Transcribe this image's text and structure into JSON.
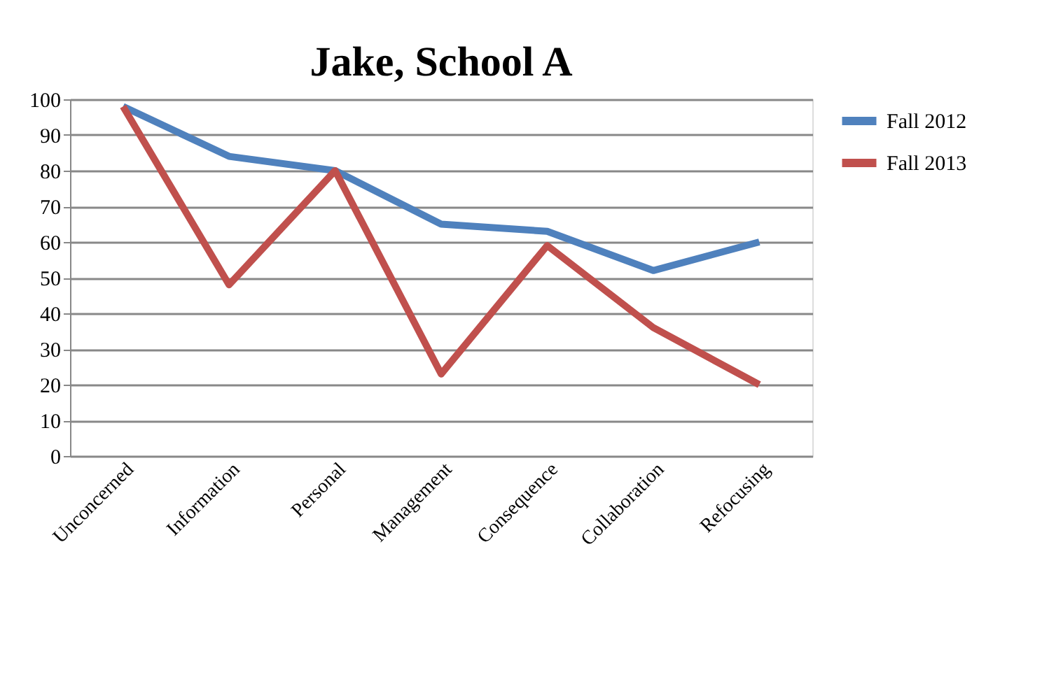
{
  "chart_data": {
    "type": "line",
    "title": "Jake, School A",
    "categories": [
      "Unconcerned",
      "Information",
      "Personal",
      "Management",
      "Consequence",
      "Collaboration",
      "Refocusing"
    ],
    "series": [
      {
        "name": "Fall 2012",
        "color": "#4f81bd",
        "values": [
          98,
          84,
          80,
          65,
          63,
          52,
          60
        ]
      },
      {
        "name": "Fall 2013",
        "color": "#c0504d",
        "values": [
          98,
          48,
          80,
          23,
          59,
          36,
          20
        ]
      }
    ],
    "ylim": [
      0,
      100
    ],
    "yticks": [
      0,
      10,
      20,
      30,
      40,
      50,
      60,
      70,
      80,
      90,
      100
    ],
    "grid": "y",
    "legend": "right",
    "marker": "none",
    "line_style": "solid"
  }
}
